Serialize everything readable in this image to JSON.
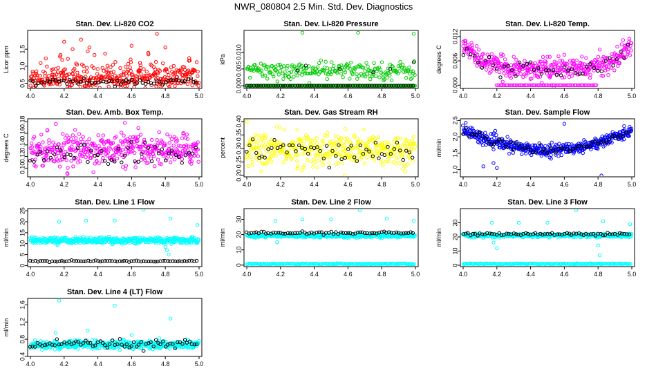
{
  "figure_title": "NWR_080804  2.5 Min. Std. Dev. Diagnostics",
  "colors": {
    "red": "#ff0000",
    "green": "#00cc00",
    "magenta": "#ff00ff",
    "yellow": "#ffff00",
    "blue": "#0000ff",
    "cyan": "#00ffff",
    "black": "#000000"
  },
  "chart_data": [
    {
      "type": "scatter",
      "title": "Stan. Dev. Li-820 CO2",
      "ylabel": "Licor ppm",
      "xlim": [
        4.0,
        5.0
      ],
      "ylim": [
        0.35,
        2.05
      ],
      "xticks": [
        "4.0",
        "4.2",
        "4.4",
        "4.6",
        "4.8",
        "5.0"
      ],
      "yticks": [
        "0.5",
        "1.0",
        "1.5"
      ],
      "main_color": "red",
      "series": [
        {
          "name": "main",
          "color": "red",
          "baseline": 0.62,
          "spread": 0.18,
          "skew": true,
          "n": 420,
          "extra": [
            [
              4.2,
              1.72
            ],
            [
              4.25,
              1.5
            ],
            [
              4.3,
              1.78
            ],
            [
              4.35,
              1.55
            ],
            [
              4.6,
              1.6
            ],
            [
              4.75,
              1.95
            ],
            [
              4.8,
              1.55
            ],
            [
              4.7,
              1.35
            ],
            [
              4.65,
              1.1
            ]
          ]
        },
        {
          "name": "secondary",
          "color": "black",
          "baseline": 0.55,
          "spread": 0.05,
          "skew": false,
          "n": 60,
          "extra": []
        }
      ]
    },
    {
      "type": "scatter",
      "title": "Stan. Dev. Li-820 Pressure",
      "ylabel": "kPa",
      "xlim": [
        4.0,
        5.0
      ],
      "ylim": [
        -0.0008,
        0.0165
      ],
      "xticks": [
        "4.0",
        "4.2",
        "4.4",
        "4.6",
        "4.8",
        "5.0"
      ],
      "yticks": [
        "0.000",
        "0.005",
        "0.010"
      ],
      "main_color": "green",
      "series": [
        {
          "name": "base",
          "color": "green",
          "baseline": 0.0,
          "spread": 0.0,
          "skew": false,
          "n": 250,
          "extra": []
        },
        {
          "name": "upper",
          "color": "green",
          "baseline": 0.0045,
          "spread": 0.0013,
          "skew": false,
          "n": 240,
          "extra": [
            [
              4.33,
              0.0158
            ],
            [
              4.66,
              0.0158
            ],
            [
              4.99,
              0.0155
            ]
          ]
        },
        {
          "name": "secondary",
          "color": "black",
          "baseline": 0.0,
          "spread": 0.0,
          "skew": false,
          "n": 70,
          "extra": [
            [
              4.35,
              0.006
            ],
            [
              4.55,
              0.005
            ],
            [
              4.85,
              0.005
            ],
            [
              4.75,
              0.004
            ],
            [
              4.99,
              0.007
            ],
            [
              4.3,
              0.0045
            ]
          ]
        }
      ]
    },
    {
      "type": "scatter",
      "title": "Stan. Dev. Li-820 Temp.",
      "ylabel": "degrees C",
      "xlim": [
        4.0,
        5.0
      ],
      "ylim": [
        -0.0008,
        0.0135
      ],
      "xticks": [
        "4.0",
        "4.2",
        "4.4",
        "4.6",
        "4.8",
        "5.0"
      ],
      "yticks": [
        "0.000",
        "0.006",
        "0.012"
      ],
      "main_color": "magenta",
      "series": [
        {
          "name": "main",
          "color": "magenta",
          "curve": "u",
          "baseline": 0.004,
          "spread": 0.0012,
          "skew": false,
          "n": 420,
          "extra": [
            [
              4.3,
              0.007
            ],
            [
              4.5,
              0.007
            ],
            [
              4.6,
              0.0075
            ]
          ]
        },
        {
          "name": "floor",
          "color": "magenta",
          "baseline": 0.0,
          "spread": 0.0,
          "skew": false,
          "n": 60,
          "xmin": 4.2,
          "xmax": 4.8,
          "extra": []
        },
        {
          "name": "secondary",
          "color": "black",
          "curve": "u",
          "baseline": 0.004,
          "spread": 0.001,
          "skew": false,
          "n": 45,
          "extra": []
        }
      ]
    },
    {
      "type": "scatter",
      "title": "Stan. Dev. Amb. Box Temp.",
      "ylabel": "degrees C",
      "xlim": [
        4.0,
        5.0
      ],
      "ylim": [
        0.085,
        0.185
      ],
      "xticks": [
        "4.0",
        "4.2",
        "4.4",
        "4.6",
        "4.8",
        "5.0"
      ],
      "yticks": [
        "0.10",
        "0.12",
        "0.14",
        "0.16",
        "0.18"
      ],
      "main_color": "magenta",
      "series": [
        {
          "name": "main",
          "color": "magenta",
          "baseline": 0.132,
          "spread": 0.013,
          "skew": false,
          "n": 420,
          "extra": [
            [
              4.1,
              0.165
            ],
            [
              4.56,
              0.178
            ],
            [
              4.22,
              0.09
            ]
          ]
        },
        {
          "name": "secondary",
          "color": "black",
          "baseline": 0.125,
          "spread": 0.01,
          "skew": false,
          "n": 50,
          "extra": []
        }
      ]
    },
    {
      "type": "scatter",
      "title": "Stan. Dev. Gas Stream RH",
      "ylabel": "percent",
      "xlim": [
        4.0,
        5.0
      ],
      "ylim": [
        0.195,
        0.41
      ],
      "xticks": [
        "4.0",
        "4.2",
        "4.4",
        "4.6",
        "4.8",
        "5.0"
      ],
      "yticks": [
        "0.20",
        "0.25",
        "0.30",
        "0.35",
        "0.40"
      ],
      "main_color": "yellow",
      "series": [
        {
          "name": "main",
          "color": "yellow",
          "baseline": 0.295,
          "spread": 0.03,
          "skew": false,
          "n": 420,
          "extra": [
            [
              4.0,
              0.4
            ],
            [
              4.3,
              0.37
            ],
            [
              4.58,
              0.2
            ]
          ]
        },
        {
          "name": "secondary",
          "color": "black",
          "baseline": 0.29,
          "spread": 0.025,
          "skew": false,
          "n": 55,
          "extra": []
        }
      ]
    },
    {
      "type": "scatter",
      "title": "Stan. Dev. Sample Flow",
      "ylabel": "ml/min",
      "xlim": [
        4.0,
        5.0
      ],
      "ylim": [
        0.78,
        2.55
      ],
      "xticks": [
        "4.0",
        "4.2",
        "4.4",
        "4.6",
        "4.8",
        "5.0"
      ],
      "yticks": [
        "1.0",
        "1.5",
        "2.0",
        "2.5"
      ],
      "main_color": "blue",
      "series": [
        {
          "name": "main",
          "color": "blue",
          "curve": "u2",
          "baseline": 1.6,
          "spread": 0.09,
          "skew": false,
          "n": 450,
          "extra": [
            [
              4.12,
              1.1
            ],
            [
              4.18,
              1.2
            ],
            [
              4.2,
              1.05
            ],
            [
              4.6,
              2.4
            ],
            [
              4.82,
              0.82
            ]
          ]
        },
        {
          "name": "secondary",
          "color": "black",
          "curve": "u2",
          "baseline": 1.6,
          "spread": 0.06,
          "skew": false,
          "n": 60,
          "extra": []
        }
      ]
    },
    {
      "type": "scatter",
      "title": "Stan. Dev. Line 1 Flow",
      "ylabel": "ml/min",
      "xlim": [
        4.0,
        5.0
      ],
      "ylim": [
        -0.5,
        26
      ],
      "xticks": [
        "4.0",
        "4.2",
        "4.4",
        "4.6",
        "4.8",
        "5.0"
      ],
      "yticks": [
        "0",
        "5",
        "10",
        "15",
        "20",
        "25"
      ],
      "main_color": "cyan",
      "series": [
        {
          "name": "main",
          "color": "cyan",
          "baseline": 11.5,
          "spread": 0.7,
          "skew": false,
          "n": 450,
          "extra": [
            [
              4.17,
              20
            ],
            [
              4.33,
              20.5
            ],
            [
              4.5,
              20.5
            ],
            [
              4.67,
              25.5
            ],
            [
              4.83,
              21.5
            ],
            [
              4.99,
              18.5
            ],
            [
              4.8,
              8.5
            ],
            [
              4.81,
              7
            ],
            [
              4.82,
              5
            ]
          ]
        },
        {
          "name": "secondary",
          "color": "black",
          "baseline": 2.0,
          "spread": 0.15,
          "skew": false,
          "n": 70,
          "extra": []
        }
      ]
    },
    {
      "type": "scatter",
      "title": "Stan. Dev. Line 2 Flow",
      "ylabel": "ml/min",
      "xlim": [
        4.0,
        5.0
      ],
      "ylim": [
        -1,
        37
      ],
      "xticks": [
        "4.0",
        "4.2",
        "4.4",
        "4.6",
        "4.8",
        "5.0"
      ],
      "yticks": [
        "0",
        "10",
        "20",
        "30"
      ],
      "main_color": "cyan",
      "series": [
        {
          "name": "main",
          "color": "cyan",
          "baseline": 19.3,
          "spread": 0.6,
          "skew": false,
          "n": 420,
          "extra": [
            [
              4.17,
              29
            ],
            [
              4.18,
              15
            ],
            [
              4.33,
              30
            ],
            [
              4.5,
              30
            ],
            [
              4.67,
              36
            ],
            [
              4.83,
              30.5
            ],
            [
              4.99,
              29
            ]
          ]
        },
        {
          "name": "base",
          "color": "cyan",
          "baseline": 0.8,
          "spread": 0.15,
          "skew": false,
          "n": 160,
          "extra": []
        },
        {
          "name": "secondary",
          "color": "black",
          "baseline": 21.0,
          "spread": 0.4,
          "skew": false,
          "n": 70,
          "extra": []
        }
      ]
    },
    {
      "type": "scatter",
      "title": "Stan. Dev. Line 3 Flow",
      "ylabel": "ml/min",
      "xlim": [
        4.0,
        5.0
      ],
      "ylim": [
        -1,
        40
      ],
      "xticks": [
        "4.0",
        "4.2",
        "4.4",
        "4.6",
        "4.8",
        "5.0"
      ],
      "yticks": [
        "0",
        "10",
        "20",
        "30"
      ],
      "main_color": "cyan",
      "series": [
        {
          "name": "main",
          "color": "cyan",
          "baseline": 21.0,
          "spread": 0.6,
          "skew": false,
          "n": 420,
          "extra": [
            [
              4.17,
              30
            ],
            [
              4.18,
              16
            ],
            [
              4.2,
              12
            ],
            [
              4.33,
              30
            ],
            [
              4.5,
              30
            ],
            [
              4.67,
              39
            ],
            [
              4.83,
              31
            ],
            [
              4.99,
              29
            ],
            [
              4.8,
              14
            ],
            [
              4.81,
              7
            ]
          ]
        },
        {
          "name": "base",
          "color": "cyan",
          "baseline": 1.0,
          "spread": 0.15,
          "skew": false,
          "n": 160,
          "extra": []
        },
        {
          "name": "secondary",
          "color": "black",
          "baseline": 22.0,
          "spread": 0.5,
          "skew": false,
          "n": 70,
          "extra": []
        }
      ]
    },
    {
      "type": "scatter",
      "title": "Stan. Dev. Line 4 (LT) Flow",
      "ylabel": "ml/min",
      "xlim": [
        4.0,
        5.0
      ],
      "ylim": [
        0.4,
        1.75
      ],
      "xticks": [
        "4.0",
        "4.2",
        "4.4",
        "4.6",
        "4.8",
        "5.0"
      ],
      "yticks": [
        "0.4",
        "0.8",
        "1.2",
        "1.6"
      ],
      "main_color": "cyan",
      "series": [
        {
          "name": "main",
          "color": "cyan",
          "baseline": 0.67,
          "spread": 0.05,
          "skew": false,
          "n": 450,
          "extra": [
            [
              4.17,
              1.7
            ],
            [
              4.5,
              1.58
            ],
            [
              4.83,
              1.28
            ],
            [
              4.34,
              1.0
            ],
            [
              4.15,
              0.95
            ],
            [
              4.6,
              0.9
            ]
          ]
        },
        {
          "name": "secondary",
          "color": "black",
          "baseline": 0.68,
          "spread": 0.05,
          "skew": false,
          "n": 70,
          "extra": []
        }
      ]
    }
  ]
}
